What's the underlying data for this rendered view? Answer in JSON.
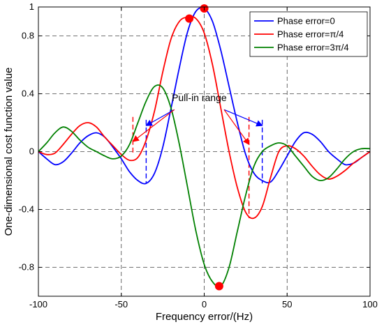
{
  "chart_data": {
    "type": "line",
    "xlabel": "Frequency error/(Hz)",
    "ylabel": "One-dimensional cost function value",
    "xlim": [
      -100,
      100
    ],
    "ylim": [
      -1,
      1
    ],
    "xticks": [
      -100,
      -50,
      0,
      50,
      100
    ],
    "xtick_labels": [
      "-100",
      "-50",
      "0",
      "50",
      "100"
    ],
    "yticks": [
      1,
      0.8,
      0.4,
      0,
      -0.4,
      -0.8
    ],
    "ytick_labels": [
      "1",
      "0.8",
      "0.4",
      "0",
      "-0.4",
      "-0.8"
    ],
    "grid": true,
    "legend_position": "top-right",
    "series": [
      {
        "name": "Phase error=0",
        "color": "#0000ff",
        "x": [
          -100,
          -95,
          -90,
          -85,
          -80,
          -75,
          -70,
          -65,
          -60,
          -55,
          -50,
          -45,
          -40,
          -35,
          -30,
          -25,
          -20,
          -15,
          -10,
          -5,
          0,
          5,
          10,
          15,
          20,
          25,
          30,
          35,
          40,
          45,
          50,
          55,
          60,
          65,
          70,
          75,
          80,
          85,
          90,
          95,
          100
        ],
        "y": [
          0.0,
          -0.05,
          -0.09,
          -0.07,
          -0.01,
          0.06,
          0.11,
          0.13,
          0.1,
          0.03,
          -0.05,
          -0.14,
          -0.2,
          -0.22,
          -0.15,
          0.03,
          0.3,
          0.58,
          0.83,
          0.97,
          0.99,
          0.9,
          0.7,
          0.45,
          0.2,
          -0.02,
          -0.15,
          -0.2,
          -0.21,
          -0.13,
          -0.03,
          0.07,
          0.13,
          0.12,
          0.07,
          0.0,
          -0.05,
          -0.09,
          -0.08,
          -0.04,
          0.0
        ]
      },
      {
        "name": "Phase error=π/4",
        "color": "#ff0000",
        "x": [
          -100,
          -95,
          -90,
          -85,
          -80,
          -75,
          -70,
          -65,
          -60,
          -55,
          -50,
          -45,
          -40,
          -35,
          -30,
          -25,
          -20,
          -15,
          -10,
          -5,
          0,
          5,
          10,
          15,
          20,
          25,
          30,
          35,
          40,
          45,
          50,
          55,
          60,
          65,
          70,
          75,
          80,
          85,
          90,
          95,
          100
        ],
        "y": [
          0.0,
          -0.02,
          -0.01,
          0.05,
          0.12,
          0.18,
          0.2,
          0.17,
          0.1,
          0.04,
          -0.02,
          -0.06,
          -0.04,
          0.08,
          0.28,
          0.55,
          0.78,
          0.9,
          0.93,
          0.92,
          0.82,
          0.6,
          0.3,
          0.0,
          -0.25,
          -0.42,
          -0.46,
          -0.38,
          -0.18,
          0.0,
          0.04,
          0.02,
          -0.03,
          -0.1,
          -0.16,
          -0.19,
          -0.17,
          -0.13,
          -0.08,
          -0.04,
          0.0
        ]
      },
      {
        "name": "Phase error=3π/4",
        "color": "#008000",
        "x": [
          -100,
          -95,
          -90,
          -85,
          -80,
          -75,
          -70,
          -65,
          -60,
          -55,
          -50,
          -45,
          -40,
          -35,
          -30,
          -25,
          -20,
          -15,
          -10,
          -5,
          0,
          5,
          10,
          15,
          20,
          25,
          30,
          35,
          40,
          45,
          50,
          55,
          60,
          65,
          70,
          75,
          80,
          85,
          90,
          95,
          100
        ],
        "y": [
          0.0,
          0.06,
          0.13,
          0.17,
          0.14,
          0.08,
          0.03,
          0.0,
          -0.03,
          -0.05,
          -0.03,
          0.05,
          0.2,
          0.35,
          0.45,
          0.44,
          0.3,
          0.05,
          -0.25,
          -0.55,
          -0.78,
          -0.9,
          -0.93,
          -0.8,
          -0.55,
          -0.3,
          -0.1,
          0.0,
          0.04,
          0.06,
          0.04,
          -0.03,
          -0.1,
          -0.17,
          -0.2,
          -0.18,
          -0.12,
          -0.05,
          0.0,
          0.02,
          0.02
        ]
      }
    ],
    "markers": [
      {
        "x": -9,
        "y": 0.92,
        "color": "#ff0000"
      },
      {
        "x": 0,
        "y": 0.99,
        "color": "#ff0000"
      },
      {
        "x": 9,
        "y": -0.93,
        "color": "#ff0000"
      }
    ],
    "pullin_lines": [
      {
        "x": -43,
        "y_top": 0.24,
        "y_bottom": -0.02,
        "color": "#ff0000"
      },
      {
        "x": 27,
        "y_top": 0.24,
        "y_bottom": -0.46,
        "color": "#ff0000"
      },
      {
        "x": -35,
        "y_top": 0.22,
        "y_bottom": -0.22,
        "color": "#0000ff"
      },
      {
        "x": 35,
        "y_top": 0.22,
        "y_bottom": -0.22,
        "color": "#0000ff"
      }
    ],
    "annotation": {
      "text": "Pull-in range",
      "x": -3,
      "y": 0.35,
      "arrows": [
        {
          "from": [
            -18,
            0.29
          ],
          "to": [
            -35,
            0.18
          ],
          "color": "#0000ff"
        },
        {
          "from": [
            -18,
            0.29
          ],
          "to": [
            -43,
            0.07
          ],
          "color": "#ff0000"
        },
        {
          "from": [
            12,
            0.29
          ],
          "to": [
            35,
            0.18
          ],
          "color": "#0000ff"
        },
        {
          "from": [
            12,
            0.29
          ],
          "to": [
            27,
            0.05
          ],
          "color": "#ff0000"
        }
      ]
    }
  }
}
